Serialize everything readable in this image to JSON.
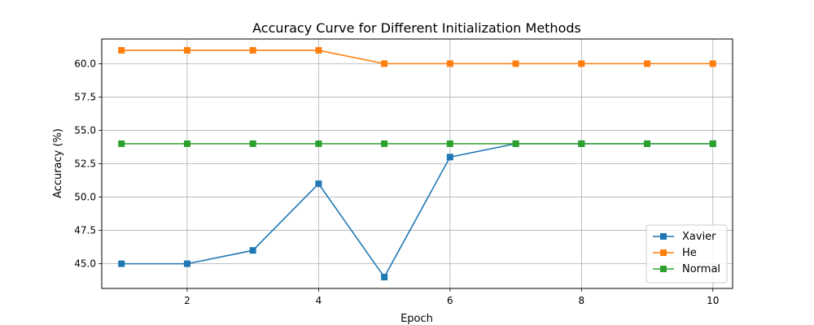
{
  "chart_data": {
    "type": "line",
    "title": "Accuracy Curve for Different Initialization Methods",
    "xlabel": "Epoch",
    "ylabel": "Accuracy (%)",
    "x": [
      1,
      2,
      3,
      4,
      5,
      6,
      7,
      8,
      9,
      10
    ],
    "xlim": [
      0.7,
      10.3
    ],
    "ylim": [
      43.15,
      61.85
    ],
    "xticks": [
      2,
      4,
      6,
      8,
      10
    ],
    "yticks": [
      45.0,
      47.5,
      50.0,
      52.5,
      55.0,
      57.5,
      60.0
    ],
    "ytick_labels": [
      "45.0",
      "47.5",
      "50.0",
      "52.5",
      "55.0",
      "57.5",
      "60.0"
    ],
    "grid": true,
    "legend_position": "bottom-right",
    "series": [
      {
        "name": "Xavier",
        "color": "#1f77b4",
        "marker": "square",
        "values": [
          45,
          45,
          46,
          51,
          44,
          53,
          54,
          54,
          54,
          54
        ]
      },
      {
        "name": "He",
        "color": "#ff7f0e",
        "marker": "square",
        "values": [
          61,
          61,
          61,
          61,
          60,
          60,
          60,
          60,
          60,
          60
        ]
      },
      {
        "name": "Normal",
        "color": "#2ca02c",
        "marker": "square",
        "values": [
          54,
          54,
          54,
          54,
          54,
          54,
          54,
          54,
          54,
          54
        ]
      }
    ]
  }
}
